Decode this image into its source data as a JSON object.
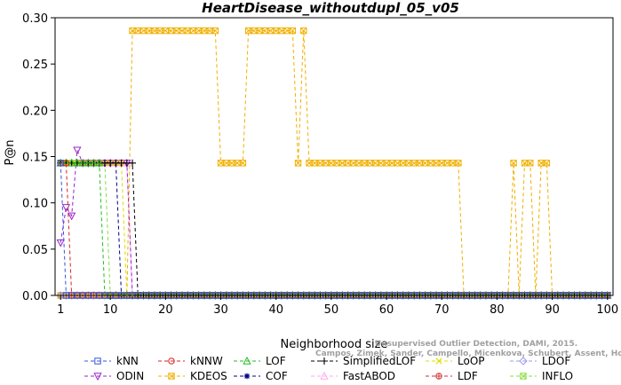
{
  "chart_data": {
    "type": "line",
    "title": "HeartDisease_withoutdupl_05_v05",
    "xlabel": "Neighborhood size",
    "ylabel": "P@n",
    "xlim": [
      0,
      101
    ],
    "ylim": [
      0,
      0.3
    ],
    "xticks": [
      1,
      10,
      20,
      30,
      40,
      50,
      60,
      70,
      80,
      90,
      100
    ],
    "yticks": [
      "0.00",
      "0.05",
      "0.10",
      "0.15",
      "0.20",
      "0.25",
      "0.30"
    ],
    "watermark": [
      "Campos, Zimek, Sander, Campello, Micenkova, Schubert, Assent, Houle",
      "Unsupervised Outlier Detection, DAMI, 2015."
    ],
    "series": [
      {
        "name": "kNN",
        "color": "#3355dd",
        "marker": "square",
        "points": [
          [
            1,
            0.143
          ],
          [
            2,
            0
          ],
          [
            100,
            0
          ]
        ]
      },
      {
        "name": "kNNW",
        "color": "#dd2222",
        "marker": "circle",
        "points": [
          [
            1,
            0.143
          ],
          [
            2,
            0.143
          ],
          [
            3,
            0
          ],
          [
            100,
            0
          ]
        ]
      },
      {
        "name": "LOF",
        "color": "#22bb22",
        "marker": "triangle",
        "points": [
          [
            1,
            0.143
          ],
          [
            7,
            0.143
          ],
          [
            8,
            0.143
          ],
          [
            9,
            0
          ],
          [
            100,
            0
          ]
        ]
      },
      {
        "name": "SimplifiedLOF",
        "color": "#000000",
        "marker": "plus",
        "points": [
          [
            1,
            0.143
          ],
          [
            10,
            0.143
          ],
          [
            11,
            0.143
          ],
          [
            12,
            0.143
          ],
          [
            13,
            0.143
          ],
          [
            14,
            0.143
          ],
          [
            15,
            0
          ],
          [
            100,
            0
          ]
        ]
      },
      {
        "name": "LoOP",
        "color": "#dddd00",
        "marker": "x",
        "points": [
          [
            1,
            0.143
          ],
          [
            12,
            0.143
          ],
          [
            13,
            0
          ],
          [
            100,
            0
          ]
        ]
      },
      {
        "name": "LDOF",
        "color": "#9999ee",
        "marker": "diamond",
        "points": [
          [
            1,
            0
          ],
          [
            100,
            0
          ]
        ]
      },
      {
        "name": "ODIN",
        "color": "#9922cc",
        "marker": "triangle-down",
        "points": [
          [
            1,
            0.057
          ],
          [
            2,
            0.095
          ],
          [
            3,
            0.086
          ],
          [
            4,
            0.157
          ],
          [
            5,
            0.143
          ],
          [
            13,
            0.143
          ],
          [
            14,
            0
          ],
          [
            100,
            0
          ]
        ]
      },
      {
        "name": "KDEOS",
        "color": "#f0b000",
        "marker": "square-x",
        "points": [
          [
            1,
            0
          ],
          [
            13,
            0
          ],
          [
            14,
            0.286
          ],
          [
            29,
            0.286
          ],
          [
            30,
            0.143
          ],
          [
            34,
            0.143
          ],
          [
            35,
            0.286
          ],
          [
            43,
            0.286
          ],
          [
            44,
            0.143
          ],
          [
            45,
            0.286
          ],
          [
            46,
            0.143
          ],
          [
            73,
            0.143
          ],
          [
            74,
            0
          ],
          [
            82,
            0
          ],
          [
            83,
            0.143
          ],
          [
            84,
            0
          ],
          [
            85,
            0.143
          ],
          [
            86,
            0.143
          ],
          [
            87,
            0
          ],
          [
            88,
            0.143
          ],
          [
            89,
            0.143
          ],
          [
            90,
            0
          ],
          [
            100,
            0
          ]
        ]
      },
      {
        "name": "COF",
        "color": "#000088",
        "marker": "star",
        "points": [
          [
            1,
            0.143
          ],
          [
            11,
            0.143
          ],
          [
            12,
            0
          ],
          [
            100,
            0
          ]
        ]
      },
      {
        "name": "FastABOD",
        "color": "#ffaaee",
        "marker": "triangle",
        "points": [
          [
            1,
            0.143
          ],
          [
            13,
            0.143
          ],
          [
            14,
            0
          ],
          [
            100,
            0
          ]
        ]
      },
      {
        "name": "LDF",
        "color": "#cc3333",
        "marker": "circle-plus",
        "points": [
          [
            1,
            0
          ],
          [
            100,
            0
          ]
        ]
      },
      {
        "name": "INFLO",
        "color": "#88dd44",
        "marker": "square-x",
        "points": [
          [
            1,
            0.143
          ],
          [
            2,
            0.143
          ],
          [
            3,
            0.143
          ],
          [
            4,
            0.143
          ],
          [
            5,
            0.143
          ],
          [
            6,
            0.143
          ],
          [
            7,
            0.143
          ],
          [
            8,
            0.143
          ],
          [
            9,
            0.143
          ],
          [
            10,
            0
          ],
          [
            100,
            0
          ]
        ]
      }
    ],
    "legend_order": [
      [
        "kNN",
        "kNNW",
        "LOF",
        "SimplifiedLOF",
        "LoOP",
        "LDOF"
      ],
      [
        "ODIN",
        "KDEOS",
        "COF",
        "FastABOD",
        "LDF",
        "INFLO"
      ]
    ],
    "legend_placement": "bottom",
    "grid": false
  }
}
